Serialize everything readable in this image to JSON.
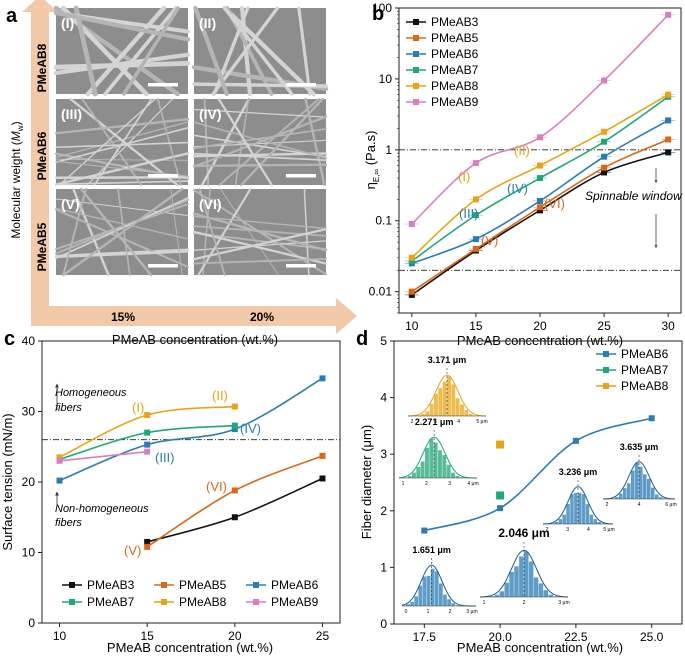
{
  "colors": {
    "PMeAB3": "#111111",
    "PMeAB5": "#d9681c",
    "PMeAB6": "#2b7bb5",
    "PMeAB7": "#1fa777",
    "PMeAB8": "#e8a417",
    "PMeAB9": "#d97fbf",
    "arrow": "#f2c9a8",
    "sem_bg": "#8d8d8d"
  },
  "panel_a": {
    "letter": "a",
    "ylabel_main": "Molecular weight (",
    "ylabel_M": "M",
    "ylabel_sub": "w",
    "ylabel_end": ")",
    "xlabel": "PMeAB concentration (wt.%)",
    "rows": [
      "PMeAB8",
      "PMeAB6",
      "PMeAB5"
    ],
    "cols": [
      "15%",
      "20%"
    ],
    "images": [
      "(I)",
      "(II)",
      "(III)",
      "(IV)",
      "(V)",
      "(VI)"
    ]
  },
  "panel_b": {
    "letter": "b",
    "spinnable_label": "Spinnable window",
    "ylabel_eta": "η",
    "ylabel_sub": "E,∞",
    "ylabel_unit": " (Pa.s)",
    "region_labels": [
      "(I)",
      "(II)",
      "(III)",
      "(IV)",
      "(V)",
      "(VI)"
    ]
  },
  "panel_c": {
    "letter": "c",
    "homogeneous_label": [
      "Homogeneous",
      "fibers"
    ],
    "nonhomogeneous_label": [
      "Non-homogeneous",
      "fibers"
    ],
    "region_labels": [
      "(I)",
      "(II)",
      "(III)",
      "(IV)",
      "(V)",
      "(VI)"
    ]
  },
  "panel_d": {
    "letter": "d",
    "hist_labels": [
      "3.171 μm",
      "2.271 μm",
      "1.651 μm",
      "2.046 μm",
      "3.236 μm",
      "3.635 μm"
    ],
    "hist_ticks": [
      [
        "2",
        "3",
        "4",
        "5 μm"
      ],
      [
        "1",
        "2",
        "3",
        "4 μm"
      ],
      [
        "0",
        "1",
        "2",
        "3 μm"
      ],
      [
        "1",
        "2",
        "3 μm"
      ],
      [
        "2",
        "3",
        "4",
        "5 μm"
      ],
      [
        "2",
        "4",
        "6 μm"
      ]
    ]
  },
  "chart_data": [
    {
      "panel": "b",
      "type": "line",
      "xlabel": "PMeAB concentration (wt.%)",
      "ylabel": "ηE,∞ (Pa.s)",
      "yscale": "log",
      "xlim": [
        9,
        31
      ],
      "ylim": [
        0.005,
        100
      ],
      "xticks": [
        "10",
        "15",
        "20",
        "25",
        "30"
      ],
      "yticks": [
        "0.01",
        "0.1",
        "1",
        "10",
        "100"
      ],
      "legend_position": "top-left",
      "reference_lines": [
        0.02,
        1
      ],
      "x": [
        10,
        15,
        20,
        25,
        30
      ],
      "series": [
        {
          "name": "PMeAB3",
          "values": [
            0.009,
            0.038,
            0.14,
            0.48,
            0.92
          ]
        },
        {
          "name": "PMeAB5",
          "values": [
            0.01,
            0.04,
            0.155,
            0.56,
            1.4
          ]
        },
        {
          "name": "PMeAB6",
          "values": [
            0.025,
            0.055,
            0.19,
            0.8,
            2.6
          ]
        },
        {
          "name": "PMeAB7",
          "values": [
            0.027,
            0.12,
            0.4,
            1.3,
            5.6
          ]
        },
        {
          "name": "PMeAB8",
          "values": [
            0.03,
            0.2,
            0.6,
            1.8,
            6.0
          ]
        },
        {
          "name": "PMeAB9",
          "values": [
            0.09,
            0.65,
            1.5,
            9.5,
            80
          ]
        }
      ]
    },
    {
      "panel": "c",
      "type": "line",
      "xlabel": "PMeAB concentration (wt.%)",
      "ylabel": "Surface tension (mN/m)",
      "xlim": [
        9,
        26
      ],
      "ylim": [
        0,
        40
      ],
      "xticks": [
        "10",
        "15",
        "20",
        "25"
      ],
      "yticks": [
        "0",
        "10",
        "20",
        "30",
        "40"
      ],
      "legend_position": "bottom",
      "reference_lines": [
        26
      ],
      "series": [
        {
          "name": "PMeAB3",
          "x": [
            15,
            20,
            25
          ],
          "values": [
            11.5,
            15.0,
            20.5
          ]
        },
        {
          "name": "PMeAB5",
          "x": [
            15,
            20,
            25
          ],
          "values": [
            10.8,
            18.8,
            23.7
          ]
        },
        {
          "name": "PMeAB6",
          "x": [
            10,
            15,
            20,
            25
          ],
          "values": [
            20.2,
            25.3,
            27.5,
            34.7
          ]
        },
        {
          "name": "PMeAB7",
          "x": [
            10,
            15,
            20
          ],
          "values": [
            23.2,
            27.0,
            28.0
          ]
        },
        {
          "name": "PMeAB8",
          "x": [
            10,
            15,
            20
          ],
          "values": [
            23.5,
            29.5,
            30.7
          ]
        },
        {
          "name": "PMeAB9",
          "x": [
            10,
            15
          ],
          "values": [
            23.0,
            24.3
          ]
        }
      ]
    },
    {
      "panel": "d",
      "type": "scatter",
      "xlabel": "PMeAB concentration (wt.%)",
      "ylabel": "Fiber diameter (μm)",
      "xlim": [
        16.5,
        26
      ],
      "ylim": [
        0,
        5
      ],
      "xticks": [
        "17.5",
        "20.0",
        "22.5",
        "25.0"
      ],
      "yticks": [
        "0",
        "1",
        "2",
        "3",
        "4",
        "5"
      ],
      "legend_position": "top-right",
      "series": [
        {
          "name": "PMeAB6",
          "x": [
            17.5,
            20.0,
            22.5,
            25.0
          ],
          "values": [
            1.651,
            2.046,
            3.236,
            3.635
          ]
        },
        {
          "name": "PMeAB7",
          "x": [
            20.0
          ],
          "values": [
            2.271
          ]
        },
        {
          "name": "PMeAB8",
          "x": [
            20.0
          ],
          "values": [
            3.171
          ]
        }
      ]
    }
  ]
}
